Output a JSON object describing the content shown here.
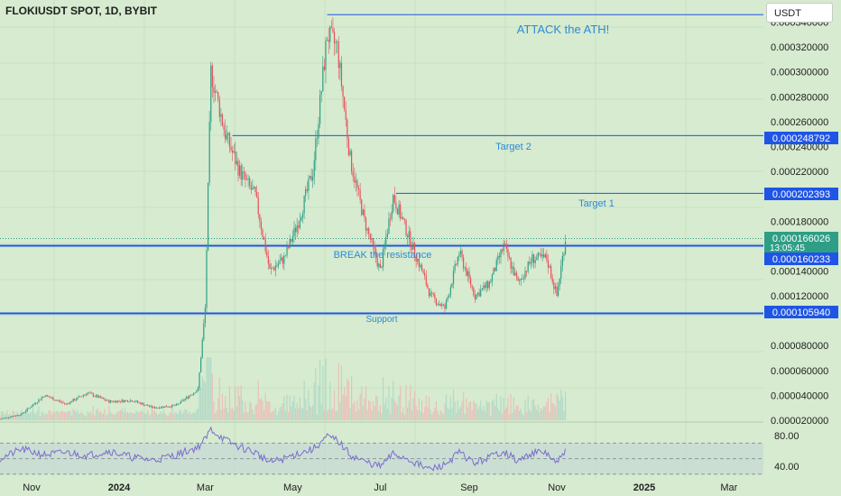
{
  "header": {
    "symbol": "FLOKIUSDT SPOT, 1D, BYBIT",
    "currency_button": "USDT"
  },
  "colors": {
    "background": "#d6ebcf",
    "up_candle": "#2e9e86",
    "down_candle": "#e8505a",
    "level_line": "#1f55e6",
    "annotation_text": "#2f8ad6",
    "rsi_line": "#7b6ccf"
  },
  "price_axis": {
    "ticks": [
      "0.000340000",
      "0.000320000",
      "0.000300000",
      "0.000280000",
      "0.000260000",
      "0.000240000",
      "0.000220000",
      "0.000180000",
      "0.000140000",
      "0.000120000",
      "0.000080000",
      "0.000060000",
      "0.000040000",
      "0.000020000"
    ]
  },
  "price_labels": {
    "target2": "0.000248792",
    "target1": "0.000202393",
    "current": "0.000166026",
    "countdown": "13:05:45",
    "resistance": "0.000160233",
    "support": "0.000105940"
  },
  "annotations": {
    "ath": "ATTACK the ATH!",
    "target2": "Target 2",
    "target1": "Target 1",
    "resistance": "BREAK the resistance",
    "support": "Support"
  },
  "rsi_axis": {
    "upper": "80.00",
    "lower": "40.00"
  },
  "time_axis": {
    "labels": [
      "Nov",
      "2024",
      "Mar",
      "May",
      "Jul",
      "Sep",
      "Nov",
      "2025",
      "Mar"
    ]
  },
  "chart_data": {
    "type": "line",
    "ylim": [
      2e-05,
      0.000352
    ],
    "levels": {
      "ath": 0.000346,
      "target2": 0.000248792,
      "target1": 0.000202393,
      "resistance": 0.000160233,
      "support": 0.00010594,
      "current": 0.000166026
    },
    "price": {
      "x": [
        "2023-10-10",
        "2023-10-25",
        "2023-11-10",
        "2023-11-25",
        "2023-12-10",
        "2023-12-25",
        "2024-01-10",
        "2024-01-25",
        "2024-02-10",
        "2024-02-25",
        "2024-03-01",
        "2024-03-05",
        "2024-03-15",
        "2024-03-25",
        "2024-04-05",
        "2024-04-15",
        "2024-04-25",
        "2024-05-05",
        "2024-05-15",
        "2024-05-25",
        "2024-06-01",
        "2024-06-10",
        "2024-06-20",
        "2024-07-01",
        "2024-07-10",
        "2024-07-20",
        "2024-07-30",
        "2024-08-05",
        "2024-08-15",
        "2024-08-25",
        "2024-09-05",
        "2024-09-15",
        "2024-09-25",
        "2024-10-05",
        "2024-10-15",
        "2024-10-25",
        "2024-11-01",
        "2024-11-07"
      ],
      "y": [
        2.1e-05,
        2.5e-05,
        4e-05,
        3.3e-05,
        4.2e-05,
        3.5e-05,
        3.6e-05,
        3e-05,
        3.2e-05,
        4.5e-05,
        0.00011,
        0.0003,
        0.00025,
        0.00022,
        0.0002,
        0.00014,
        0.00015,
        0.00018,
        0.00022,
        0.00033,
        0.00032,
        0.00023,
        0.00018,
        0.00014,
        0.0002,
        0.00017,
        0.00014,
        0.00012,
        0.00011,
        0.000155,
        0.00012,
        0.00013,
        0.00016,
        0.00013,
        0.00015,
        0.00015,
        0.00012,
        0.000166
      ]
    },
    "rsi": {
      "ylim": [
        25,
        95
      ],
      "y": [
        50,
        62,
        55,
        58,
        54,
        60,
        52,
        48,
        55,
        65,
        75,
        88,
        74,
        65,
        58,
        45,
        50,
        57,
        62,
        78,
        74,
        55,
        46,
        40,
        56,
        50,
        40,
        36,
        42,
        58,
        44,
        52,
        60,
        46,
        58,
        57,
        43,
        60
      ]
    }
  }
}
